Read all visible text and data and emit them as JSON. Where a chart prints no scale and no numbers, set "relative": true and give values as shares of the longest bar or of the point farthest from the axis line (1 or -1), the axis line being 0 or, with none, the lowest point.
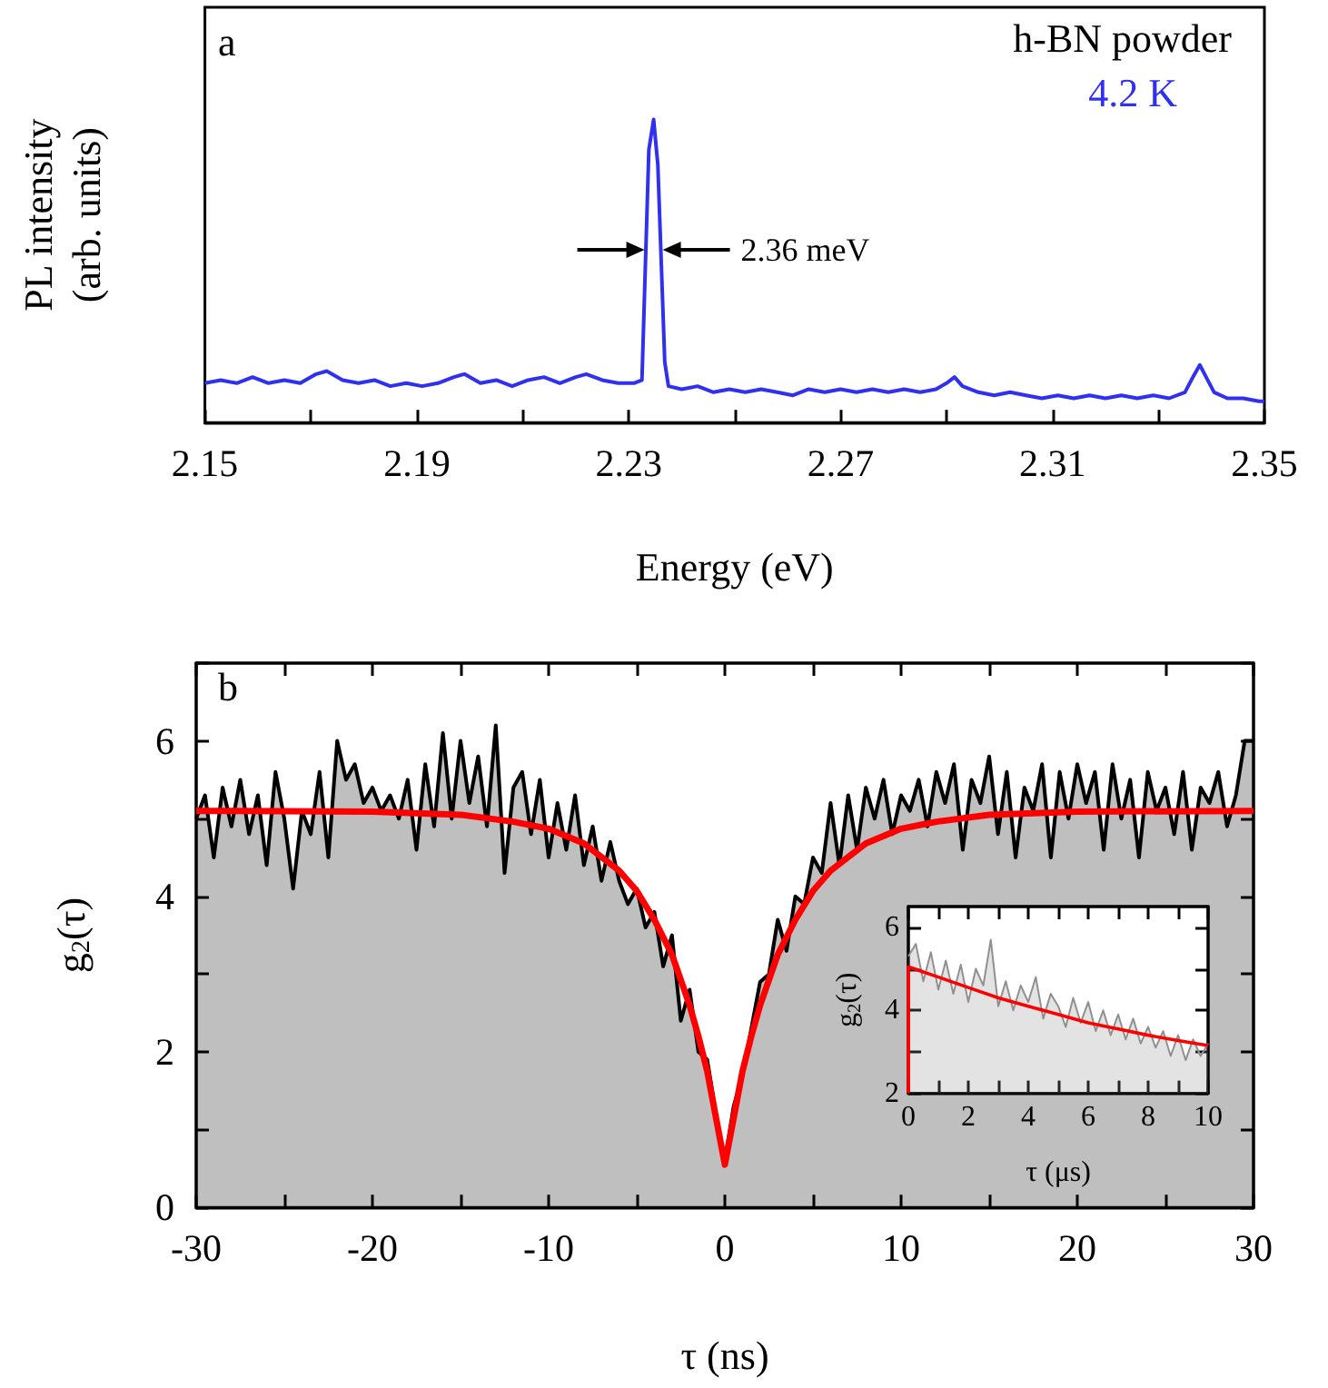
{
  "chart_data": [
    {
      "type": "line",
      "relative": true,
      "xlabel": "Energy (eV)",
      "ylabel": "PL intensity\n(arb. units)",
      "tick_labels": "x",
      "xlim": [
        2.15,
        2.35
      ],
      "xticks": [
        2.15,
        {
          "value": 2.17,
          "label": null
        },
        2.19,
        {
          "value": 2.21,
          "label": null
        },
        2.23,
        {
          "value": 2.25,
          "label": null
        },
        2.27,
        {
          "value": 2.29,
          "label": null
        },
        2.31,
        {
          "value": 2.33,
          "label": null
        },
        2.35
      ],
      "annotations": [
        "a",
        "h-BN powder",
        "4.2 K",
        {
          "text": "2.36 meV",
          "x": 2.2347,
          "y": 0.57
        }
      ],
      "x": [
        2.15,
        2.153,
        2.156,
        2.159,
        2.162,
        2.165,
        2.168,
        2.171,
        2.173,
        2.176,
        2.179,
        2.182,
        2.185,
        2.188,
        2.191,
        2.194,
        2.197,
        2.199,
        2.202,
        2.205,
        2.208,
        2.211,
        2.214,
        2.217,
        2.22,
        2.222,
        2.225,
        2.228,
        2.231,
        2.2325,
        2.2332,
        2.2338,
        2.2347,
        2.2355,
        2.2362,
        2.2368,
        2.2375,
        2.24,
        2.243,
        2.246,
        2.249,
        2.252,
        2.255,
        2.258,
        2.261,
        2.264,
        2.267,
        2.27,
        2.273,
        2.276,
        2.279,
        2.282,
        2.285,
        2.288,
        2.29,
        2.2915,
        2.293,
        2.296,
        2.299,
        2.302,
        2.305,
        2.308,
        2.311,
        2.314,
        2.317,
        2.32,
        2.323,
        2.326,
        2.329,
        2.332,
        2.335,
        2.3365,
        2.3378,
        2.339,
        2.3405,
        2.343,
        2.346,
        2.349,
        2.35
      ],
      "series": [
        {
          "color": "#3030f0",
          "values": [
            0.13,
            0.14,
            0.13,
            0.15,
            0.13,
            0.14,
            0.13,
            0.16,
            0.17,
            0.14,
            0.13,
            0.14,
            0.12,
            0.13,
            0.12,
            0.13,
            0.15,
            0.16,
            0.13,
            0.14,
            0.12,
            0.14,
            0.15,
            0.13,
            0.15,
            0.16,
            0.14,
            0.13,
            0.13,
            0.14,
            0.55,
            0.9,
            1.0,
            0.85,
            0.5,
            0.2,
            0.12,
            0.11,
            0.12,
            0.1,
            0.11,
            0.1,
            0.11,
            0.1,
            0.09,
            0.11,
            0.1,
            0.11,
            0.1,
            0.11,
            0.1,
            0.11,
            0.1,
            0.11,
            0.13,
            0.15,
            0.12,
            0.1,
            0.09,
            0.1,
            0.09,
            0.08,
            0.09,
            0.08,
            0.09,
            0.08,
            0.09,
            0.08,
            0.09,
            0.08,
            0.1,
            0.15,
            0.19,
            0.15,
            0.1,
            0.08,
            0.08,
            0.07,
            0.07
          ]
        }
      ]
    },
    {
      "type": "area",
      "xlabel": "τ (ns)",
      "ylabel": "g$_{2}$(τ)",
      "xlim": [
        -30,
        30
      ],
      "ylim": [
        0,
        7
      ],
      "xticks": [
        -30,
        {
          "value": -25,
          "label": null
        },
        -20,
        {
          "value": -15,
          "label": null
        },
        -10,
        {
          "value": -5,
          "label": null
        },
        0,
        {
          "value": 5,
          "label": null
        },
        10,
        {
          "value": 15,
          "label": null
        },
        20,
        {
          "value": 25,
          "label": null
        },
        30
      ],
      "yticks": [
        0,
        {
          "value": 1,
          "label": null
        },
        2,
        {
          "value": 3,
          "label": null
        },
        4,
        {
          "value": 5,
          "label": null
        },
        6,
        {
          "value": 7,
          "label": null
        }
      ],
      "annotations": [
        "b"
      ],
      "series": [
        {
          "color": "#000000",
          "x": [
            -30,
            -29.5,
            -29,
            -28.5,
            -28,
            -27.5,
            -27,
            -26.5,
            -26,
            -25.5,
            -25,
            -24.5,
            -24,
            -23.5,
            -23,
            -22.5,
            -22,
            -21.5,
            -21,
            -20.5,
            -20,
            -19.5,
            -19,
            -18.5,
            -18,
            -17.5,
            -17,
            -16.5,
            -16,
            -15.5,
            -15,
            -14.5,
            -14,
            -13.5,
            -13,
            -12.5,
            -12,
            -11.5,
            -11,
            -10.5,
            -10,
            -9.5,
            -9,
            -8.5,
            -8,
            -7.5,
            -7,
            -6.5,
            -6,
            -5.5,
            -5,
            -4.5,
            -4,
            -3.5,
            -3,
            -2.5,
            -2,
            -1.5,
            -1,
            -0.5,
            0,
            0.5,
            1,
            1.5,
            2,
            2.5,
            3,
            3.5,
            4,
            4.5,
            5,
            5.5,
            6,
            6.5,
            7,
            7.5,
            8,
            8.5,
            9,
            9.5,
            10,
            10.5,
            11,
            11.5,
            12,
            12.5,
            13,
            13.5,
            14,
            14.5,
            15,
            15.5,
            16,
            16.5,
            17,
            17.5,
            18,
            18.5,
            19,
            19.5,
            20,
            20.5,
            21,
            21.5,
            22,
            22.5,
            23,
            23.5,
            24,
            24.5,
            25,
            25.5,
            26,
            26.5,
            27,
            27.5,
            28,
            28.5,
            29,
            29.5,
            30
          ],
          "values": [
            5.0,
            5.3,
            4.5,
            5.4,
            4.9,
            5.5,
            4.8,
            5.3,
            4.4,
            5.6,
            5.0,
            4.1,
            5.1,
            4.8,
            5.6,
            4.5,
            6.0,
            5.5,
            5.7,
            5.2,
            5.4,
            5.1,
            5.3,
            5.0,
            5.5,
            4.6,
            5.7,
            4.9,
            6.1,
            5.0,
            6.0,
            5.2,
            5.8,
            4.9,
            6.2,
            4.3,
            5.4,
            5.6,
            4.8,
            5.5,
            4.5,
            5.2,
            4.6,
            5.3,
            4.4,
            4.9,
            4.2,
            4.7,
            4.2,
            3.9,
            4.1,
            3.6,
            3.8,
            3.1,
            3.5,
            2.4,
            2.8,
            2.0,
            1.9,
            1.2,
            0.6,
            1.3,
            1.7,
            2.3,
            2.9,
            3.0,
            3.7,
            3.3,
            4.0,
            3.9,
            4.5,
            4.3,
            5.2,
            4.4,
            5.3,
            4.6,
            5.4,
            5.0,
            5.5,
            4.8,
            5.3,
            5.1,
            5.5,
            4.9,
            5.6,
            5.2,
            5.7,
            4.6,
            5.5,
            5.2,
            5.8,
            4.8,
            5.6,
            4.5,
            5.4,
            5.1,
            5.7,
            4.5,
            5.6,
            5.0,
            5.7,
            5.2,
            5.6,
            4.6,
            5.7,
            5.0,
            5.5,
            4.5,
            5.6,
            5.1,
            5.4,
            4.8,
            5.6,
            4.6,
            5.4,
            5.2,
            5.6,
            4.9,
            5.3,
            6.0,
            6.0
          ]
        },
        {
          "type": "line",
          "color": "#ff0000",
          "x": [
            -30,
            -20,
            -15,
            -12,
            -10,
            -8,
            -6,
            -5,
            -4,
            -3,
            -2,
            -1.5,
            -1,
            -0.5,
            0,
            0.5,
            1,
            1.5,
            2,
            3,
            4,
            5,
            6,
            8,
            10,
            12,
            15,
            20,
            30
          ],
          "values": [
            5.1,
            5.09,
            5.05,
            4.96,
            4.87,
            4.68,
            4.33,
            4.07,
            3.7,
            3.25,
            2.6,
            2.2,
            1.75,
            1.15,
            0.55,
            1.15,
            1.75,
            2.2,
            2.6,
            3.25,
            3.7,
            4.07,
            4.33,
            4.68,
            4.87,
            4.96,
            5.05,
            5.09,
            5.1
          ]
        }
      ]
    },
    {
      "type": "area",
      "xlabel": "τ (μs)",
      "ylabel": "g$_{2}$(τ)",
      "xlim": [
        0,
        10
      ],
      "ylim": [
        2,
        6.5
      ],
      "xticks": [
        0,
        {
          "value": 1,
          "label": null
        },
        2,
        {
          "value": 3,
          "label": null
        },
        4,
        {
          "value": 5,
          "label": null
        },
        6,
        {
          "value": 7,
          "label": null
        },
        8,
        {
          "value": 9,
          "label": null
        },
        10
      ],
      "yticks": [
        2,
        {
          "value": 3,
          "label": null
        },
        4,
        {
          "value": 5,
          "label": null
        },
        6
      ],
      "series": [
        {
          "color": "#909090",
          "x": [
            0,
            0.25,
            0.5,
            0.75,
            1,
            1.25,
            1.5,
            1.75,
            2,
            2.25,
            2.5,
            2.75,
            3,
            3.25,
            3.5,
            3.75,
            4,
            4.25,
            4.5,
            4.75,
            5,
            5.25,
            5.5,
            5.75,
            6,
            6.25,
            6.5,
            6.75,
            7,
            7.25,
            7.5,
            7.75,
            8,
            8.25,
            8.5,
            8.75,
            9,
            9.25,
            9.5,
            9.75,
            10
          ],
          "values": [
            5.3,
            5.6,
            4.7,
            5.4,
            4.5,
            5.2,
            4.4,
            5.1,
            4.2,
            5.0,
            4.6,
            5.7,
            4.1,
            4.7,
            4.0,
            4.6,
            4.2,
            4.8,
            3.8,
            4.4,
            4.1,
            3.6,
            4.3,
            3.7,
            4.2,
            3.5,
            4.0,
            3.4,
            3.9,
            3.3,
            3.8,
            3.2,
            3.6,
            3.1,
            3.5,
            2.9,
            3.4,
            2.8,
            3.3,
            2.9,
            3.2
          ]
        },
        {
          "type": "line",
          "color": "#ff0000",
          "x": [
            0,
            0,
            1,
            2,
            3,
            4,
            5,
            6,
            7,
            8,
            9,
            10
          ],
          "values": [
            2,
            5.05,
            4.8,
            4.55,
            4.3,
            4.1,
            3.9,
            3.7,
            3.55,
            3.4,
            3.27,
            3.15
          ]
        }
      ]
    }
  ]
}
